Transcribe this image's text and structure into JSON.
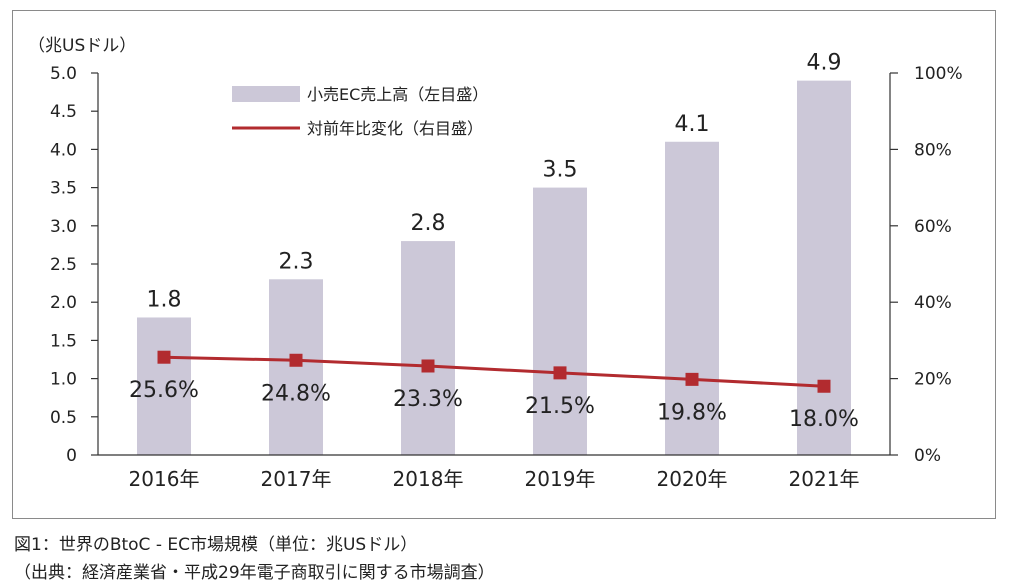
{
  "chart_data": {
    "type": "bar",
    "categories": [
      "2016年",
      "2017年",
      "2018年",
      "2019年",
      "2020年",
      "2021年"
    ],
    "series": [
      {
        "name": "小売EC売上高（左目盛）",
        "type": "bar",
        "axis": "left",
        "values": [
          1.8,
          2.3,
          2.8,
          3.5,
          4.1,
          4.9
        ],
        "labels": [
          "1.8",
          "2.3",
          "2.8",
          "3.5",
          "4.1",
          "4.9"
        ]
      },
      {
        "name": "対前年比変化（右目盛）",
        "type": "line",
        "axis": "right",
        "values": [
          25.6,
          24.8,
          23.3,
          21.5,
          19.8,
          18.0
        ],
        "labels": [
          "25.6%",
          "24.8%",
          "23.3%",
          "21.5%",
          "19.8%",
          "18.0%"
        ]
      }
    ],
    "y_left": {
      "unit_label": "（兆USドル）",
      "min": 0,
      "max": 5.0,
      "ticks": [
        "0",
        "0.5",
        "1.0",
        "1.5",
        "2.0",
        "2.5",
        "3.0",
        "3.5",
        "4.0",
        "4.5",
        "5.0"
      ]
    },
    "y_right": {
      "min": 0,
      "max": 100,
      "ticks": [
        "0%",
        "20%",
        "40%",
        "60%",
        "80%",
        "100%"
      ]
    },
    "legend_position": "top-left",
    "colors": {
      "bar": "#ccc8d8",
      "line": "#b22b2f",
      "axis": "#333333"
    }
  },
  "caption": {
    "line1": "図1：世界のBtoC - EC市場規模（単位：兆USドル）",
    "line2": "（出典：経済産業省・平成29年電子商取引に関する市場調査）"
  }
}
